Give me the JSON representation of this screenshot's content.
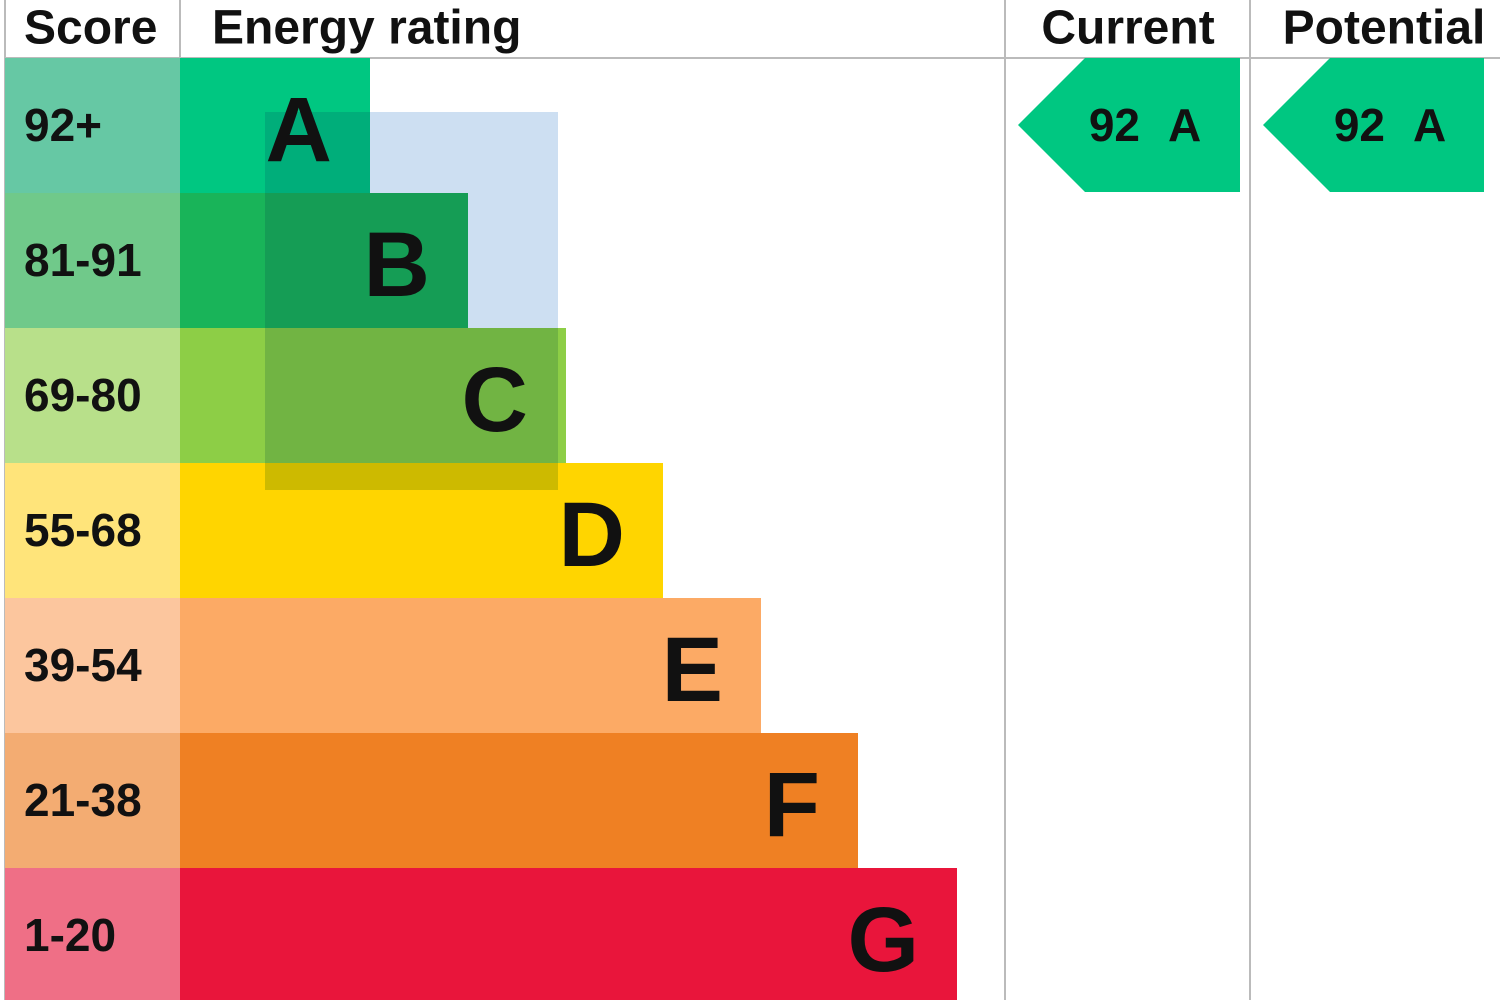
{
  "header": {
    "score": "Score",
    "rating": "Energy rating",
    "current": "Current",
    "potential": "Potential"
  },
  "rows": [
    {
      "score": "92+",
      "letter": "A",
      "color": "#00c781",
      "score_color": "#66c8a4"
    },
    {
      "score": "81-91",
      "letter": "B",
      "color": "#19b459",
      "score_color": "#70c98a"
    },
    {
      "score": "69-80",
      "letter": "C",
      "color": "#8dce46",
      "score_color": "#b8e08a"
    },
    {
      "score": "55-68",
      "letter": "D",
      "color": "#ffd500",
      "score_color": "#ffe47a"
    },
    {
      "score": "39-54",
      "letter": "E",
      "color": "#fcaa65",
      "score_color": "#fcc69e"
    },
    {
      "score": "21-38",
      "letter": "F",
      "color": "#ef8023",
      "score_color": "#f3ac72"
    },
    {
      "score": "1-20",
      "letter": "G",
      "color": "#e9153b",
      "score_color": "#ef6f86"
    }
  ],
  "current": {
    "score": 92,
    "letter": "A",
    "color": "#00c781"
  },
  "potential": {
    "score": 92,
    "letter": "A",
    "color": "#00c781"
  }
}
